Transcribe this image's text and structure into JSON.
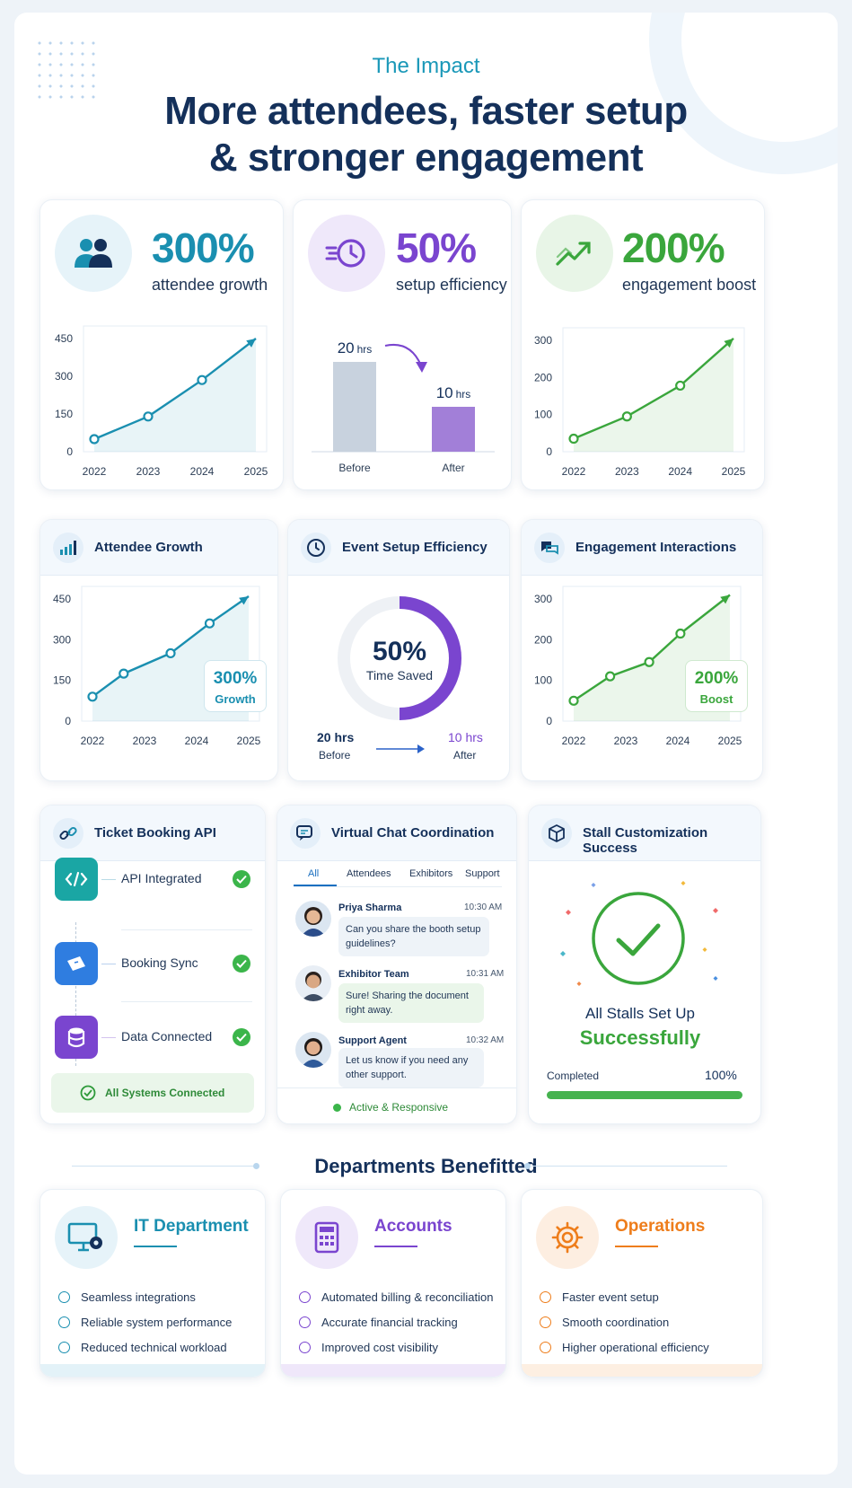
{
  "header": {
    "eyebrow": "The Impact",
    "title_line1": "More attendees, faster setup",
    "title_line2": "& stronger engagement"
  },
  "stats": [
    {
      "value": "300%",
      "label": "attendee growth",
      "color": "#1a8fb0",
      "icon": "people-icon"
    },
    {
      "value": "50%",
      "label": "setup efficiency",
      "color": "#7a45cf",
      "icon": "clock-speed-icon"
    },
    {
      "value": "200%",
      "label": "engagement boost",
      "color": "#3aa63c",
      "icon": "trend-up-icon"
    }
  ],
  "chart_data": [
    {
      "type": "area",
      "categories": [
        "2022",
        "2023",
        "2024",
        "2025"
      ],
      "values": [
        50,
        140,
        285,
        450
      ],
      "yticks": [
        "0",
        "150",
        "300",
        "450"
      ],
      "ylim": [
        0,
        450
      ]
    },
    {
      "type": "bar",
      "categories": [
        "Before",
        "After"
      ],
      "values": [
        20,
        10
      ],
      "value_labels": [
        {
          "num": "20",
          "unit": "hrs"
        },
        {
          "num": "10",
          "unit": "hrs"
        }
      ]
    },
    {
      "type": "area",
      "categories": [
        "2022",
        "2023",
        "2024",
        "2025"
      ],
      "values": [
        35,
        95,
        178,
        305
      ],
      "yticks": [
        "0",
        "100",
        "200",
        "300"
      ],
      "ylim": [
        0,
        300
      ]
    },
    {
      "type": "area",
      "categories": [
        "2022",
        "2023",
        "2024",
        "2025"
      ],
      "x": [
        0,
        0.6,
        1.5,
        2.25,
        3
      ],
      "values": [
        90,
        175,
        250,
        360,
        460
      ],
      "yticks": [
        "0",
        "150",
        "300",
        "450"
      ],
      "ylim": [
        0,
        450
      ]
    },
    {
      "type": "pie",
      "title": "Event Setup Efficiency",
      "values": [
        50,
        50
      ],
      "center_value": "50%",
      "center_label": "Time Saved"
    },
    {
      "type": "area",
      "categories": [
        "2022",
        "2023",
        "2024",
        "2025"
      ],
      "x": [
        0,
        0.7,
        1.45,
        2.05,
        3
      ],
      "values": [
        50,
        110,
        145,
        215,
        310
      ],
      "yticks": [
        "0",
        "100",
        "200",
        "300"
      ],
      "ylim": [
        0,
        300
      ]
    }
  ],
  "detail": {
    "attendee": {
      "title": "Attendee Growth",
      "badge_value": "300%",
      "badge_label": "Growth"
    },
    "setup": {
      "title": "Event Setup Efficiency",
      "before_value": "20 hrs",
      "before_label": "Before",
      "after_value": "10 hrs",
      "after_label": "After"
    },
    "engagement": {
      "title": "Engagement Interactions",
      "badge_value": "200%",
      "badge_label": "Boost"
    }
  },
  "ticket": {
    "title": "Ticket Booking API",
    "rows": [
      "API Integrated",
      "Booking Sync",
      "Data Connected"
    ],
    "footer": "All Systems Connected"
  },
  "chat": {
    "title": "Virtual Chat Coordination",
    "tabs": [
      "All",
      "Attendees",
      "Exhibitors",
      "Support"
    ],
    "messages": [
      {
        "name": "Priya Sharma",
        "time": "10:30 AM",
        "text": "Can you share the booth setup guidelines?"
      },
      {
        "name": "Exhibitor Team",
        "time": "10:31 AM",
        "text": "Sure! Sharing the document right away."
      },
      {
        "name": "Support Agent",
        "time": "10:32 AM",
        "text": "Let us know if you need any other support."
      }
    ],
    "status": "Active & Responsive"
  },
  "stall": {
    "title": "Stall Customization Success",
    "line1": "All Stalls Set Up",
    "line2": "Successfully",
    "progress_label": "Completed",
    "progress_value": "100%",
    "progress": 1.0
  },
  "departments": {
    "title": "Departments Benefitted",
    "items": [
      {
        "name": "IT Department",
        "color": "#1a8fb0",
        "benefits": [
          "Seamless integrations",
          "Reliable system performance",
          "Reduced technical workload"
        ]
      },
      {
        "name": "Accounts",
        "color": "#7a45cf",
        "benefits": [
          "Automated billing & reconciliation",
          "Accurate financial tracking",
          "Improved cost visibility"
        ]
      },
      {
        "name": "Operations",
        "color": "#ee7d1b",
        "benefits": [
          "Faster event setup",
          "Smooth coordination",
          "Higher operational efficiency"
        ]
      }
    ]
  }
}
